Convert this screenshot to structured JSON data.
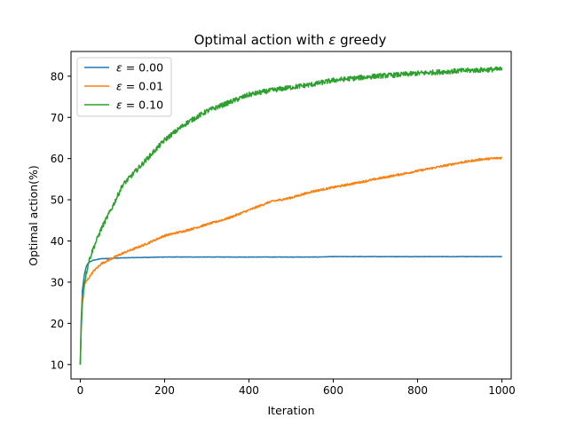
{
  "chart_data": {
    "type": "line",
    "title_prefix": "Optimal action with ",
    "title_symbol": "ε",
    "title_suffix": " greedy",
    "xlabel": "Iteration",
    "ylabel": "Optimal action(%)",
    "xlim": [
      -22,
      1022
    ],
    "ylim": [
      6.5,
      86
    ],
    "x_ticks": [
      0,
      200,
      400,
      600,
      800,
      1000
    ],
    "y_ticks": [
      10,
      20,
      30,
      40,
      50,
      60,
      70,
      80
    ],
    "grid": false,
    "legend_position": "upper-left",
    "series": [
      {
        "name_symbol": "ε",
        "name_rest": " = 0.00",
        "color": "#1f77b4",
        "noise": 0.05,
        "points": [
          [
            0,
            10
          ],
          [
            2,
            20
          ],
          [
            5,
            28
          ],
          [
            10,
            32
          ],
          [
            15,
            34
          ],
          [
            20,
            34.8
          ],
          [
            30,
            35.3
          ],
          [
            50,
            35.7
          ],
          [
            100,
            35.9
          ],
          [
            150,
            36.0
          ],
          [
            200,
            36.1
          ],
          [
            400,
            36.1
          ],
          [
            560,
            36.1
          ],
          [
            600,
            36.2
          ],
          [
            800,
            36.2
          ],
          [
            1000,
            36.2
          ]
        ]
      },
      {
        "name_symbol": "ε",
        "name_rest": " = 0.01",
        "color": "#ff7f0e",
        "noise": 0.25,
        "points": [
          [
            0,
            10
          ],
          [
            2,
            18
          ],
          [
            5,
            26
          ],
          [
            10,
            29.5
          ],
          [
            20,
            31
          ],
          [
            30,
            32.5
          ],
          [
            50,
            34.5
          ],
          [
            100,
            37
          ],
          [
            150,
            39
          ],
          [
            200,
            41.3
          ],
          [
            250,
            42.5
          ],
          [
            300,
            44
          ],
          [
            350,
            45.5
          ],
          [
            400,
            47.5
          ],
          [
            450,
            49.5
          ],
          [
            500,
            50.5
          ],
          [
            550,
            52
          ],
          [
            600,
            53
          ],
          [
            650,
            54
          ],
          [
            700,
            55
          ],
          [
            750,
            56
          ],
          [
            800,
            57
          ],
          [
            850,
            58
          ],
          [
            900,
            59
          ],
          [
            950,
            59.8
          ],
          [
            1000,
            60.2
          ]
        ]
      },
      {
        "name_symbol": "ε",
        "name_rest": " = 0.10",
        "color": "#2ca02c",
        "noise": 0.6,
        "points": [
          [
            0,
            10
          ],
          [
            2,
            18
          ],
          [
            5,
            25
          ],
          [
            10,
            30
          ],
          [
            20,
            35
          ],
          [
            30,
            38
          ],
          [
            40,
            40.5
          ],
          [
            50,
            43
          ],
          [
            75,
            48
          ],
          [
            100,
            53.5
          ],
          [
            150,
            59
          ],
          [
            200,
            64.5
          ],
          [
            250,
            68.5
          ],
          [
            300,
            71.5
          ],
          [
            350,
            73.5
          ],
          [
            400,
            75.5
          ],
          [
            450,
            76.5
          ],
          [
            500,
            77.3
          ],
          [
            550,
            78
          ],
          [
            600,
            79
          ],
          [
            650,
            79.5
          ],
          [
            700,
            80
          ],
          [
            750,
            80.3
          ],
          [
            800,
            80.7
          ],
          [
            850,
            81
          ],
          [
            900,
            81.3
          ],
          [
            950,
            81.5
          ],
          [
            1000,
            81.7
          ]
        ]
      }
    ]
  }
}
